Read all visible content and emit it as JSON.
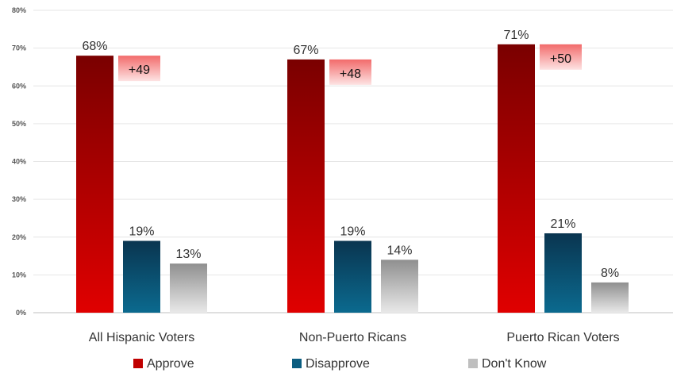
{
  "chart_data": {
    "type": "bar",
    "categories": [
      "All Hispanic Voters",
      "Non-Puerto Ricans",
      "Puerto Rican Voters"
    ],
    "series": [
      {
        "name": "Approve",
        "values": [
          68,
          67,
          71
        ],
        "labels": [
          "68%",
          "67%",
          "71%"
        ],
        "color": "#c00000"
      },
      {
        "name": "Disapprove",
        "values": [
          19,
          19,
          21
        ],
        "labels": [
          "19%",
          "19%",
          "21%"
        ],
        "color": "#0b5d80"
      },
      {
        "name": "Don't Know",
        "values": [
          13,
          14,
          8
        ],
        "labels": [
          "13%",
          "14%",
          "8%"
        ],
        "color": "#bfbfbf"
      }
    ],
    "net_labels": [
      "+49",
      "+48",
      "+50"
    ],
    "ylim": [
      0,
      80
    ],
    "yticks": [
      0,
      10,
      20,
      30,
      40,
      50,
      60,
      70,
      80
    ],
    "ytick_labels": [
      "0%",
      "10%",
      "20%",
      "30%",
      "40%",
      "50%",
      "60%",
      "70%",
      "80%"
    ],
    "grid": true,
    "legend_position": "bottom"
  }
}
